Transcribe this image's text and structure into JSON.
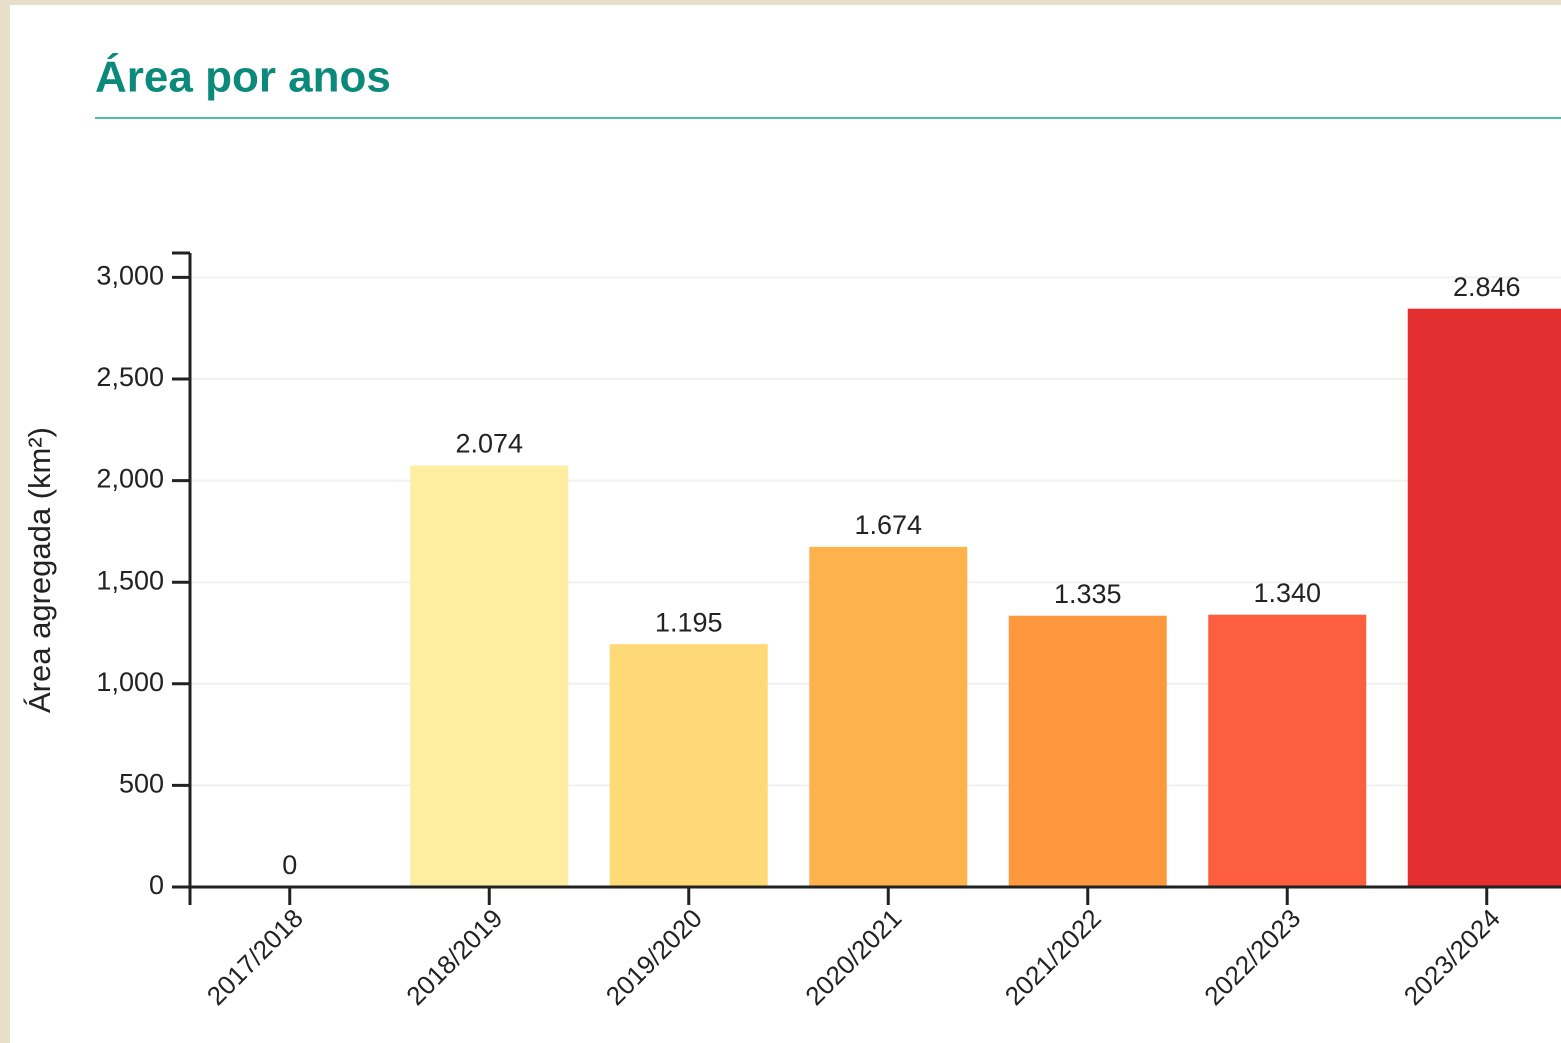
{
  "chart_data": {
    "type": "bar",
    "title": "Área por anos",
    "y_label": "Área agregada (km²)",
    "categories": [
      "2017/2018",
      "2018/2019",
      "2019/2020",
      "2020/2021",
      "2021/2022",
      "2022/2023",
      "2023/2024"
    ],
    "values": [
      0,
      2074,
      1195,
      1674,
      1335,
      1340,
      2846
    ],
    "value_labels": [
      "0",
      "2.074",
      "1.195",
      "1.674",
      "1.335",
      "1.340",
      "2.846"
    ],
    "colors": [
      "#ffffcc",
      "#ffeda0",
      "#fed976",
      "#feb24c",
      "#fd983f",
      "#fc5e3e",
      "#e32f2f"
    ],
    "ylim": [
      0,
      3120
    ],
    "yticks": [
      0,
      500,
      {
        "value": 1000,
        "label": "1,000"
      },
      {
        "value": 1500,
        "label": "1,500"
      },
      {
        "value": 2000,
        "label": "2,000"
      },
      {
        "value": 2500,
        "label": "2,500"
      },
      {
        "value": 3000,
        "label": "3,000"
      }
    ],
    "grid": true
  }
}
